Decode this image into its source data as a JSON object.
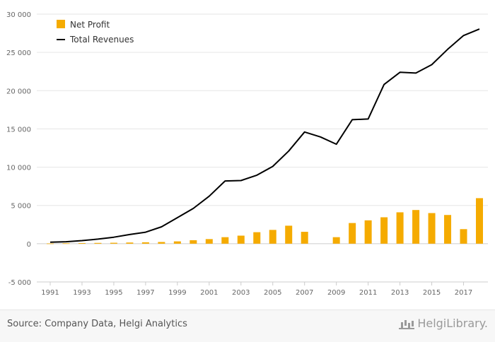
{
  "chart_data": {
    "type": "bar",
    "x": [
      "1991",
      "1992",
      "1993",
      "1994",
      "1995",
      "1996",
      "1997",
      "1998",
      "1999",
      "2000",
      "2001",
      "2002",
      "2003",
      "2004",
      "2005",
      "2006",
      "2007",
      "2008",
      "2009",
      "2010",
      "2011",
      "2012",
      "2013",
      "2014",
      "2015",
      "2016",
      "2017",
      "2018"
    ],
    "x_tick_labels": [
      "1991",
      "1993",
      "1995",
      "1997",
      "1999",
      "2001",
      "2003",
      "2005",
      "2007",
      "2009",
      "2011",
      "2013",
      "2015",
      "2017"
    ],
    "y_tick_labels": [
      "-5 000",
      "0",
      "5 000",
      "10 000",
      "15 000",
      "20 000",
      "25 000",
      "30 000"
    ],
    "ylim": [
      -5000,
      30000
    ],
    "grid": true,
    "legend_position": "top-left",
    "series": [
      {
        "name": "Net Profit",
        "type": "bar",
        "color": "#f5ab00",
        "values": [
          30,
          50,
          80,
          100,
          120,
          150,
          180,
          220,
          300,
          450,
          600,
          850,
          1050,
          1500,
          1800,
          2350,
          1550,
          0,
          850,
          2700,
          3050,
          3450,
          4100,
          4400,
          4000,
          3750,
          1900,
          5950
        ]
      },
      {
        "name": "Total Revenues",
        "type": "line",
        "color": "#000000",
        "values": [
          200,
          250,
          400,
          600,
          850,
          1200,
          1500,
          2200,
          3400,
          4600,
          6200,
          8200,
          8250,
          8950,
          10100,
          12100,
          14600,
          13950,
          13000,
          16200,
          16300,
          20800,
          22400,
          22300,
          23400,
          25400,
          27200,
          28050
        ]
      }
    ]
  },
  "footer": {
    "source": "Source: Company Data, Helgi Analytics",
    "logo_text": "HelgiLibrary."
  }
}
